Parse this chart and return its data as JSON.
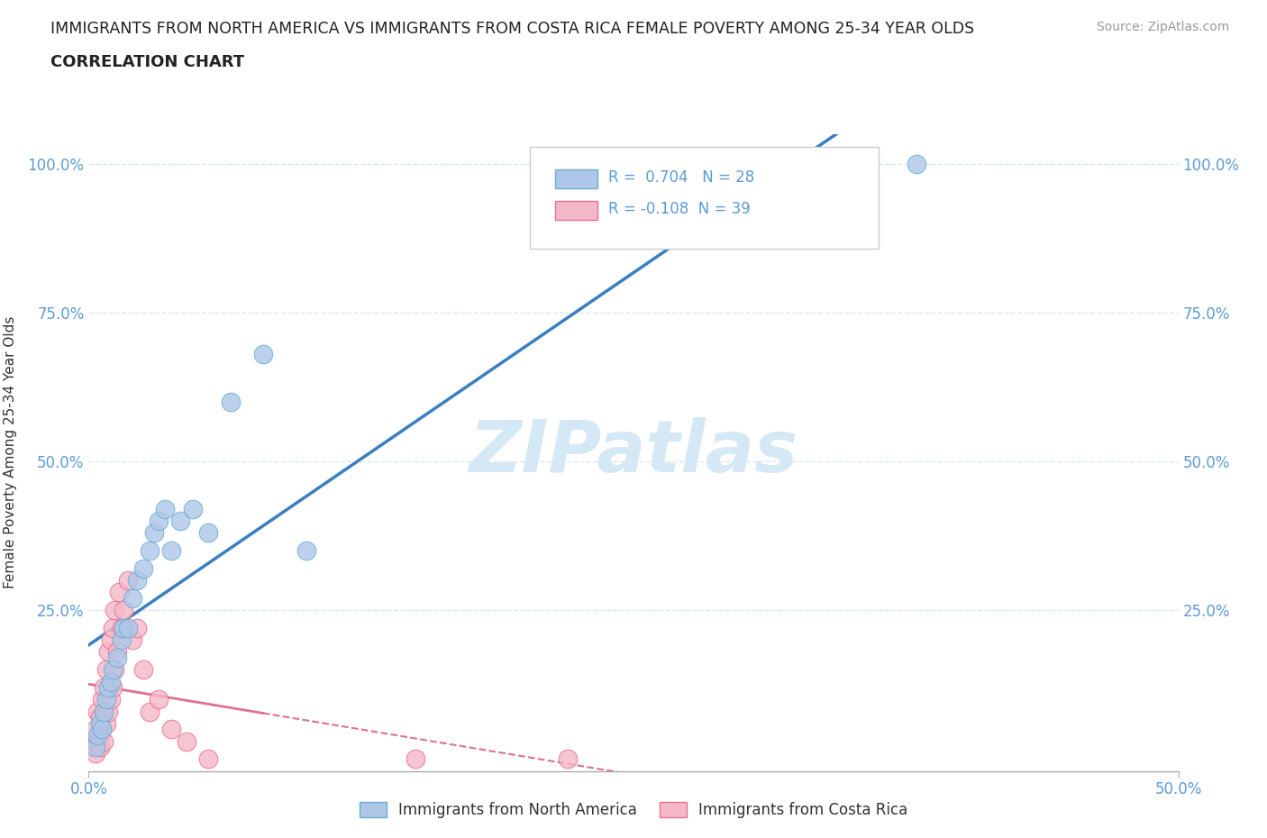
{
  "title_line1": "IMMIGRANTS FROM NORTH AMERICA VS IMMIGRANTS FROM COSTA RICA FEMALE POVERTY AMONG 25-34 YEAR OLDS",
  "title_line2": "CORRELATION CHART",
  "source_text": "Source: ZipAtlas.com",
  "ylabel": "Female Poverty Among 25-34 Year Olds",
  "xlim": [
    0.0,
    0.5
  ],
  "ylim": [
    -0.02,
    1.05
  ],
  "xticks": [
    0.0,
    0.5
  ],
  "yticks": [
    0.25,
    0.5,
    0.75,
    1.0
  ],
  "xtick_labels": [
    "0.0%",
    "50.0%"
  ],
  "ytick_labels_left": [
    "25.0%",
    "50.0%",
    "75.0%",
    "100.0%"
  ],
  "ytick_labels_right": [
    "25.0%",
    "50.0%",
    "75.0%",
    "100.0%"
  ],
  "legend_label1": "Immigrants from North America",
  "legend_label2": "Immigrants from Costa Rica",
  "R1": 0.704,
  "N1": 28,
  "R2": -0.108,
  "N2": 39,
  "color1": "#aec6e8",
  "color2": "#f5b8c8",
  "color1_edge": "#6aaed6",
  "color2_edge": "#e87090",
  "trendline1_color": "#3a7fc1",
  "trendline2_color": "#e07090",
  "watermark": "ZIPatlas",
  "watermark_color": "#d5e8f5",
  "background_color": "#ffffff",
  "grid_color": "#d8e8f0",
  "north_america_x": [
    0.003,
    0.004,
    0.005,
    0.006,
    0.007,
    0.008,
    0.009,
    0.01,
    0.011,
    0.013,
    0.015,
    0.016,
    0.018,
    0.02,
    0.022,
    0.025,
    0.028,
    0.03,
    0.032,
    0.035,
    0.038,
    0.042,
    0.048,
    0.055,
    0.065,
    0.08,
    0.1,
    0.38
  ],
  "north_america_y": [
    0.02,
    0.04,
    0.06,
    0.05,
    0.08,
    0.1,
    0.12,
    0.13,
    0.15,
    0.17,
    0.2,
    0.22,
    0.22,
    0.27,
    0.3,
    0.32,
    0.35,
    0.38,
    0.4,
    0.42,
    0.35,
    0.4,
    0.42,
    0.38,
    0.6,
    0.68,
    0.35,
    1.0
  ],
  "costa_rica_x": [
    0.002,
    0.003,
    0.003,
    0.004,
    0.004,
    0.005,
    0.005,
    0.005,
    0.006,
    0.006,
    0.007,
    0.007,
    0.007,
    0.008,
    0.008,
    0.008,
    0.009,
    0.009,
    0.01,
    0.01,
    0.011,
    0.011,
    0.012,
    0.012,
    0.013,
    0.014,
    0.015,
    0.016,
    0.018,
    0.02,
    0.022,
    0.025,
    0.028,
    0.032,
    0.038,
    0.045,
    0.055,
    0.15,
    0.22
  ],
  "costa_rica_y": [
    0.02,
    0.01,
    0.05,
    0.03,
    0.08,
    0.02,
    0.04,
    0.07,
    0.05,
    0.1,
    0.03,
    0.08,
    0.12,
    0.06,
    0.1,
    0.15,
    0.08,
    0.18,
    0.1,
    0.2,
    0.12,
    0.22,
    0.15,
    0.25,
    0.18,
    0.28,
    0.22,
    0.25,
    0.3,
    0.2,
    0.22,
    0.15,
    0.08,
    0.1,
    0.05,
    0.03,
    0.0,
    0.0,
    0.0
  ]
}
